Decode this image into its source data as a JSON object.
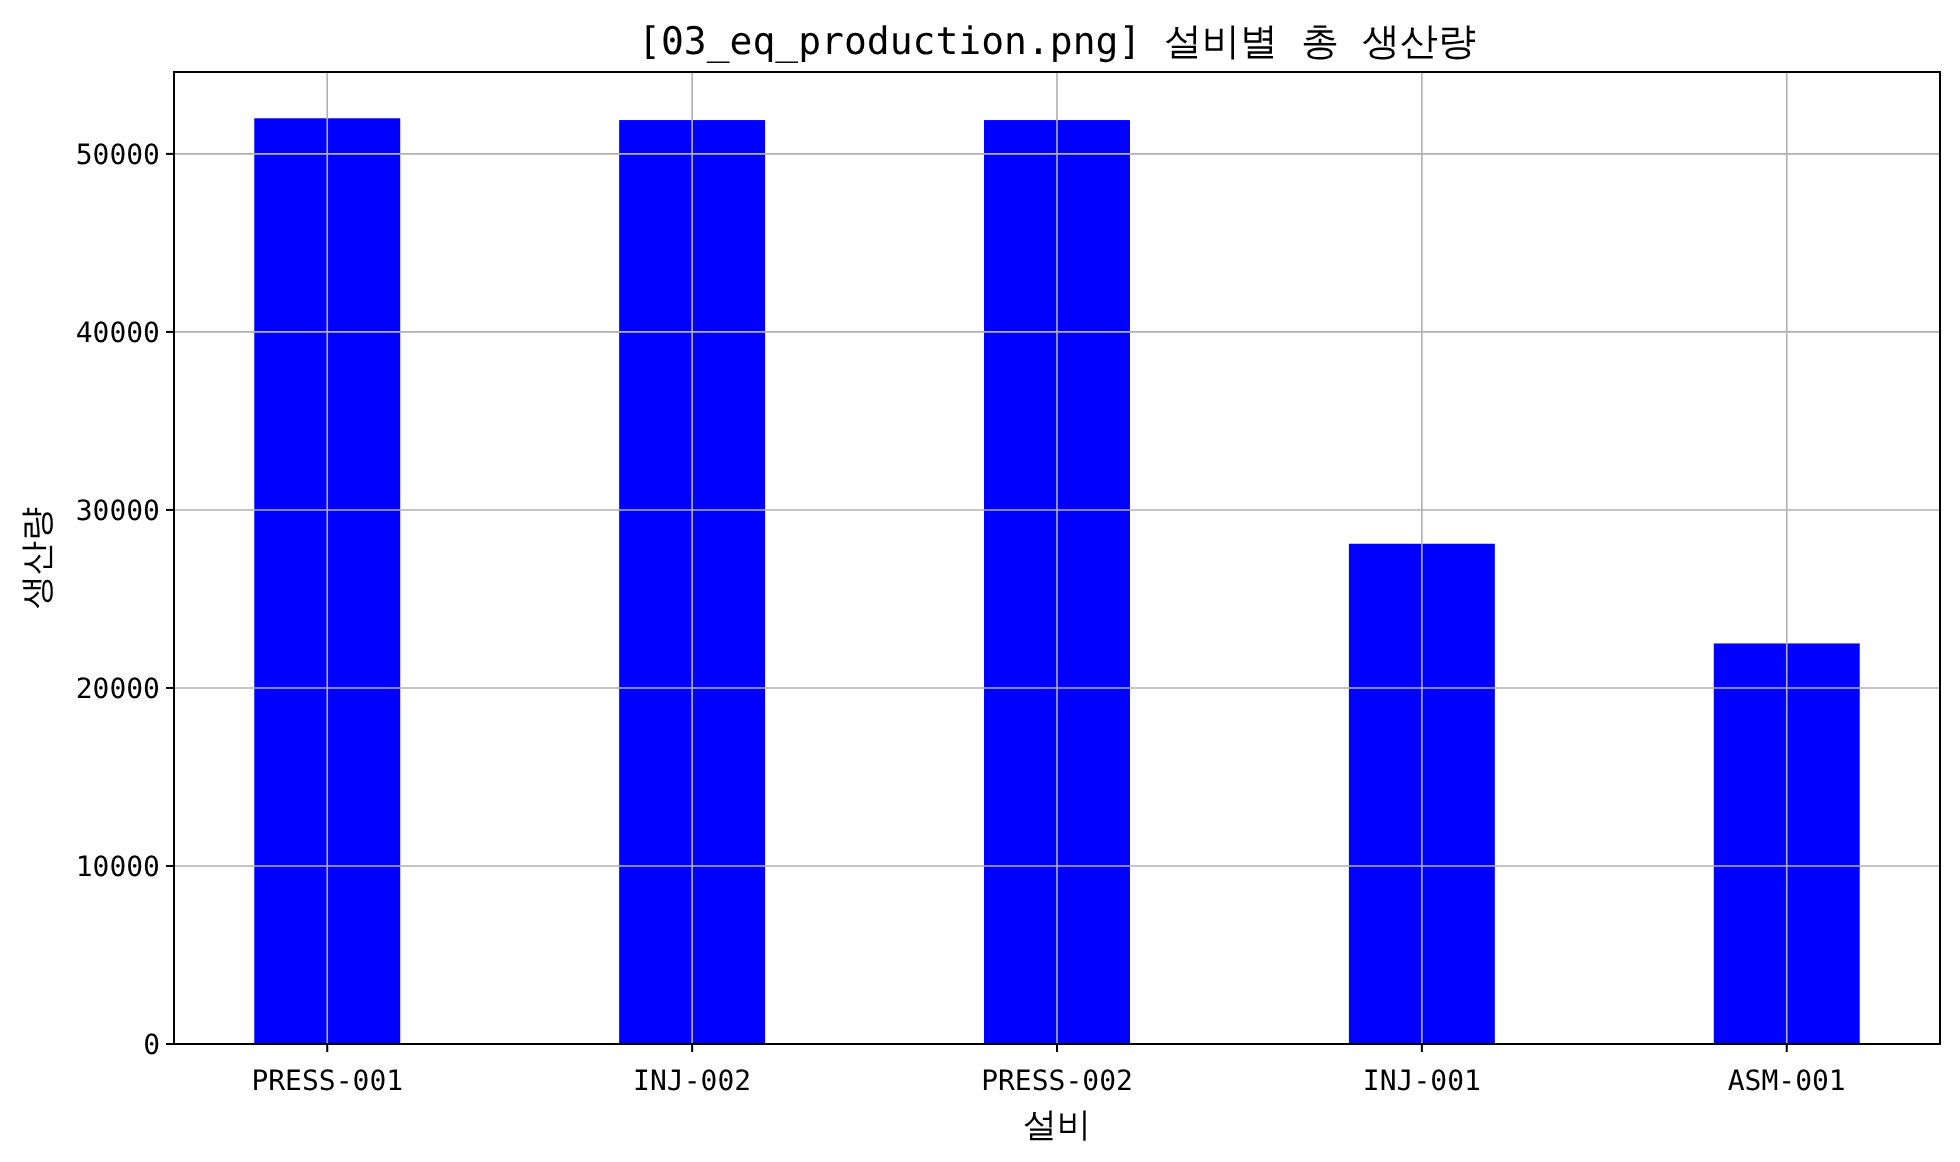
{
  "chart_data": {
    "type": "bar",
    "title": "[03_eq_production.png] 설비별 총 생산량",
    "xlabel": "설비",
    "ylabel": "생산량",
    "categories": [
      "PRESS-001",
      "INJ-002",
      "PRESS-002",
      "INJ-001",
      "ASM-001"
    ],
    "values": [
      52000,
      51900,
      51900,
      28100,
      22500
    ],
    "color": "#0000ff",
    "ylim": [
      0,
      54600
    ],
    "yticks": [
      0,
      10000,
      20000,
      30000,
      40000,
      50000
    ],
    "grid": true
  }
}
